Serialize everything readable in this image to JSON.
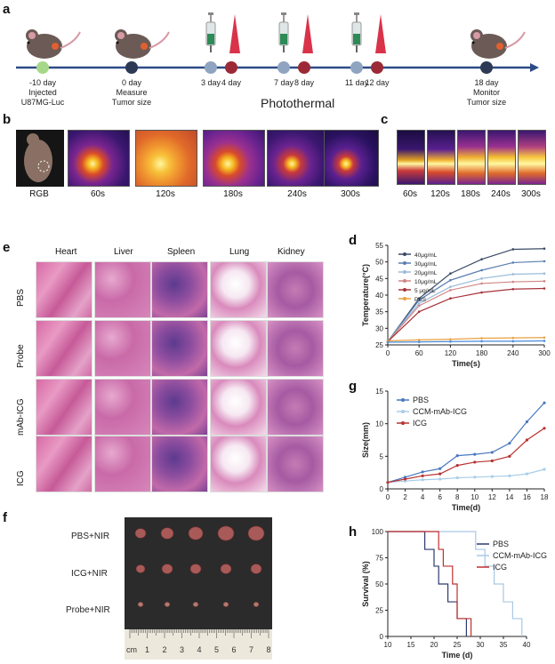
{
  "panels": {
    "a": "a",
    "b": "b",
    "c": "c",
    "d": "d",
    "e": "e",
    "f": "f",
    "g": "g",
    "h": "h"
  },
  "timeline": {
    "events": [
      {
        "day": "-10 day",
        "lines": [
          "Injected",
          "U87MG-Luc"
        ],
        "color": "#a7d88a"
      },
      {
        "day": "0 day",
        "lines": [
          "Measure",
          "Tumor size"
        ],
        "color": "#2d3a55"
      },
      {
        "day": "3 day",
        "lines": [],
        "color": "#8fa4c0"
      },
      {
        "day": "4 day",
        "lines": [],
        "color": "#9c2a36"
      },
      {
        "day": "7 day",
        "lines": [],
        "color": "#8fa4c0"
      },
      {
        "day": "8 day",
        "lines": [],
        "color": "#9c2a36"
      },
      {
        "day": "11 day",
        "lines": [],
        "color": "#8fa4c0"
      },
      {
        "day": "12 day",
        "lines": [],
        "color": "#9c2a36"
      },
      {
        "day": "18 day",
        "lines": [
          "Monitor",
          "Tumor size"
        ],
        "color": "#2d3a55"
      }
    ],
    "photothermal": "Photothermal",
    "axis_color": "#2d4b87"
  },
  "panel_b": {
    "labels": [
      "RGB",
      "60s",
      "120s",
      "180s",
      "240s",
      "300s"
    ]
  },
  "panel_c": {
    "labels": [
      "60s",
      "120s",
      "180s",
      "240s",
      "300s"
    ]
  },
  "panel_e": {
    "columns": [
      "Heart",
      "Liver",
      "Spleen",
      "Lung",
      "Kidney"
    ],
    "rows": [
      "PBS",
      "Probe",
      "mAb-ICG",
      "ICG"
    ]
  },
  "panel_f": {
    "rows": [
      "PBS+NIR",
      "ICG+NIR",
      "Probe+NIR"
    ],
    "ruler": [
      "cm",
      "1",
      "2",
      "3",
      "4",
      "5",
      "6",
      "7",
      "8"
    ]
  },
  "chart_data": [
    {
      "id": "d",
      "type": "line",
      "xlabel": "Time(s)",
      "ylabel": "Temperature(°C)",
      "x": [
        0,
        60,
        120,
        180,
        240,
        300
      ],
      "xlim": [
        0,
        300
      ],
      "ylim": [
        25,
        55
      ],
      "xticks": [
        "0",
        "60",
        "120",
        "180",
        "240",
        "300"
      ],
      "yticks": [
        "25",
        "30",
        "35",
        "40",
        "45",
        "50",
        "55"
      ],
      "legend_position": "top-left",
      "series": [
        {
          "name": "40μg/mL",
          "color": "#3a4a66",
          "values": [
            26,
            39,
            46.5,
            50.8,
            53.8,
            54
          ]
        },
        {
          "name": "30μg/mL",
          "color": "#5a7fb0",
          "values": [
            26,
            38.5,
            44.5,
            47.5,
            49.8,
            50.2
          ]
        },
        {
          "name": "20μg/mL",
          "color": "#9bbbd9",
          "values": [
            26,
            37.5,
            42.5,
            45,
            46.3,
            46.5
          ]
        },
        {
          "name": "10μg/mL",
          "color": "#d08585",
          "values": [
            26,
            36.8,
            41.5,
            43.5,
            44,
            44.2
          ]
        },
        {
          "name": "5  μg/mL",
          "color": "#a8323a",
          "values": [
            26,
            35,
            39,
            40.8,
            41.8,
            42
          ]
        },
        {
          "name": "PBS",
          "color": "#e8a040",
          "values": [
            26.2,
            26.5,
            26.7,
            27,
            27.1,
            27.2
          ]
        },
        {
          "name": "",
          "color": "#4a8ad8",
          "values": [
            25.8,
            25.9,
            26,
            26.1,
            26.1,
            26.2
          ]
        }
      ]
    },
    {
      "id": "g",
      "type": "line",
      "xlabel": "Time(d)",
      "ylabel": "Size(mm)",
      "x": [
        0,
        2,
        4,
        6,
        8,
        10,
        12,
        14,
        16,
        18
      ],
      "xlim": [
        0,
        18
      ],
      "ylim": [
        0,
        15
      ],
      "xticks": [
        "0",
        "2",
        "4",
        "6",
        "8",
        "10",
        "12",
        "14",
        "16",
        "18"
      ],
      "yticks": [
        "0",
        "5",
        "10",
        "15"
      ],
      "legend_position": "top-left",
      "series": [
        {
          "name": "PBS",
          "color": "#4a78c0",
          "values": [
            1,
            1.8,
            2.6,
            3.1,
            5.1,
            5.3,
            5.6,
            7,
            10.3,
            13.2
          ]
        },
        {
          "name": "CCM-mAb-ICG",
          "color": "#a8cde8",
          "values": [
            1,
            1.2,
            1.4,
            1.5,
            1.7,
            1.8,
            1.9,
            2,
            2.3,
            3
          ]
        },
        {
          "name": "ICG",
          "color": "#b83232",
          "values": [
            1,
            1.5,
            2,
            2.3,
            3.6,
            4.1,
            4.3,
            5,
            7.5,
            9.3
          ]
        }
      ]
    },
    {
      "id": "h",
      "type": "line",
      "xlabel": "Time (d)",
      "ylabel": "Survival (%)",
      "xlim": [
        10,
        40
      ],
      "ylim": [
        0,
        100
      ],
      "xticks": [
        "10",
        "15",
        "20",
        "25",
        "30",
        "35",
        "40"
      ],
      "yticks": [
        "0",
        "25",
        "50",
        "75",
        "100"
      ],
      "legend_position": "top-right",
      "series": [
        {
          "name": "PBS",
          "color": "#2d3a6e",
          "steps": [
            [
              10,
              100
            ],
            [
              18,
              100
            ],
            [
              18,
              83
            ],
            [
              20,
              83
            ],
            [
              20,
              67
            ],
            [
              21,
              67
            ],
            [
              21,
              50
            ],
            [
              23,
              50
            ],
            [
              23,
              33
            ],
            [
              25,
              33
            ],
            [
              25,
              17
            ],
            [
              27,
              17
            ],
            [
              27,
              0
            ]
          ]
        },
        {
          "name": "CCM-mAb-ICG",
          "color": "#a8c8e6",
          "steps": [
            [
              10,
              100
            ],
            [
              29,
              100
            ],
            [
              29,
              83
            ],
            [
              31,
              83
            ],
            [
              31,
              67
            ],
            [
              33,
              67
            ],
            [
              33,
              50
            ],
            [
              35,
              50
            ],
            [
              35,
              33
            ],
            [
              37,
              33
            ],
            [
              37,
              17
            ],
            [
              39,
              17
            ],
            [
              39,
              0
            ]
          ]
        },
        {
          "name": "ICG",
          "color": "#c03030",
          "steps": [
            [
              10,
              100
            ],
            [
              21,
              100
            ],
            [
              21,
              83
            ],
            [
              22,
              83
            ],
            [
              22,
              67
            ],
            [
              24,
              67
            ],
            [
              24,
              50
            ],
            [
              25,
              50
            ],
            [
              25,
              17
            ],
            [
              28,
              17
            ],
            [
              28,
              0
            ]
          ]
        }
      ]
    }
  ]
}
